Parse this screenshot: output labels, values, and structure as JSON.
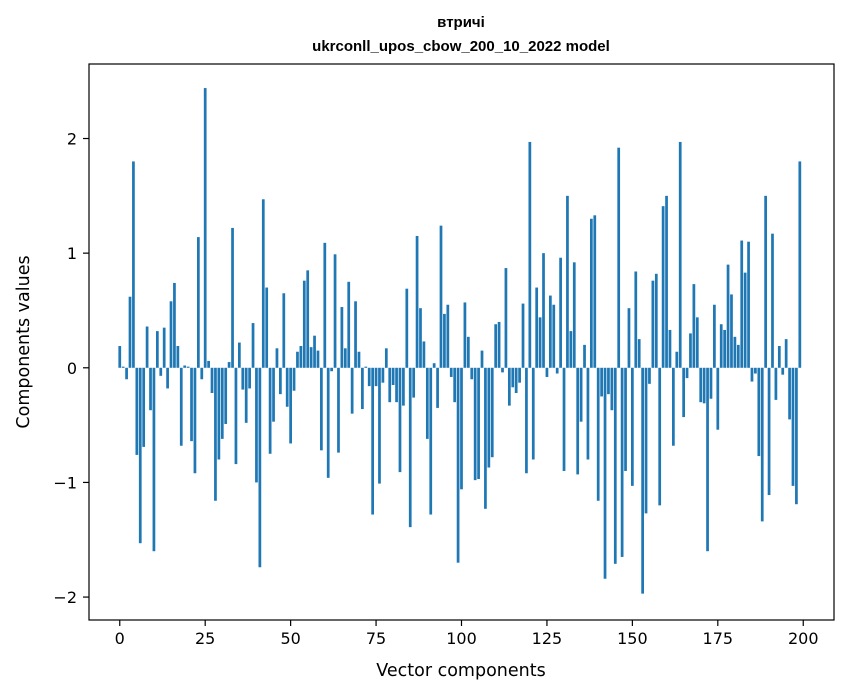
{
  "chart_data": {
    "type": "bar",
    "title": "втричі",
    "subtitle": "ukrconll_upos_cbow_200_10_2022 model",
    "xlabel": "Vector components",
    "ylabel": "Components values",
    "xlim": [
      -9,
      209
    ],
    "ylim": [
      -2.2,
      2.65
    ],
    "xticks": [
      0,
      25,
      50,
      75,
      100,
      125,
      150,
      175,
      200
    ],
    "xtick_labels": [
      "0",
      "25",
      "50",
      "75",
      "100",
      "125",
      "150",
      "175",
      "200"
    ],
    "yticks": [
      -2,
      -1,
      0,
      1,
      2
    ],
    "ytick_labels": [
      "−2",
      "−1",
      "0",
      "1",
      "2"
    ],
    "grid": false,
    "legend": "none",
    "bar_color": "#1f77b4",
    "values": [
      0.19,
      0.01,
      -0.1,
      0.62,
      1.8,
      -0.76,
      -1.53,
      -0.69,
      0.36,
      -0.37,
      -1.6,
      0.32,
      -0.07,
      0.35,
      -0.18,
      0.58,
      0.74,
      0.19,
      -0.68,
      0.02,
      0.01,
      -0.64,
      -0.92,
      1.14,
      -0.1,
      2.44,
      0.06,
      -0.22,
      -1.16,
      -0.8,
      -0.62,
      -0.49,
      0.05,
      1.22,
      -0.84,
      0.22,
      -0.19,
      -0.48,
      -0.18,
      0.39,
      -1.0,
      -1.74,
      1.47,
      0.7,
      -0.75,
      -0.47,
      0.17,
      -0.23,
      0.65,
      -0.34,
      -0.66,
      -0.2,
      0.14,
      0.19,
      0.76,
      0.85,
      0.18,
      0.28,
      0.15,
      -0.72,
      1.09,
      -0.96,
      -0.03,
      0.99,
      -0.74,
      0.53,
      0.17,
      0.75,
      -0.4,
      0.58,
      0.14,
      -0.36,
      0.01,
      -0.16,
      -1.28,
      -0.16,
      -1.01,
      -0.13,
      0.17,
      -0.3,
      -0.15,
      -0.3,
      -0.91,
      -0.33,
      0.69,
      -1.39,
      -0.26,
      1.15,
      0.52,
      0.23,
      -0.62,
      -1.28,
      0.04,
      -0.35,
      1.24,
      0.47,
      0.55,
      -0.08,
      -0.3,
      -1.7,
      -1.06,
      0.57,
      0.27,
      -0.1,
      -0.98,
      -0.97,
      0.15,
      -1.23,
      -0.87,
      -0.78,
      0.38,
      0.4,
      -0.04,
      0.87,
      -0.33,
      -0.17,
      -0.22,
      -0.13,
      0.56,
      -0.92,
      1.97,
      -0.8,
      0.7,
      0.44,
      1.0,
      -0.08,
      0.63,
      0.55,
      -0.05,
      0.96,
      -0.9,
      1.5,
      0.32,
      0.92,
      -0.93,
      -0.47,
      0.2,
      -0.8,
      1.3,
      1.33,
      -1.16,
      -0.25,
      -1.84,
      -0.23,
      -0.37,
      -1.71,
      1.92,
      -1.65,
      -0.9,
      0.52,
      -1.03,
      0.84,
      0.25,
      -1.97,
      -1.27,
      -0.14,
      0.76,
      0.82,
      -1.2,
      1.41,
      1.5,
      0.33,
      -0.68,
      0.14,
      1.97,
      -0.43,
      -0.09,
      0.3,
      0.73,
      0.44,
      -0.3,
      -0.31,
      -1.6,
      -0.27,
      0.55,
      -0.54,
      0.38,
      0.33,
      0.9,
      0.64,
      0.27,
      0.2,
      1.11,
      0.83,
      1.1,
      -0.12,
      -0.05,
      -0.77,
      -1.34,
      1.5,
      -1.11,
      1.17,
      -0.28,
      0.19,
      -0.06,
      0.25,
      -0.45,
      -1.03,
      -1.19,
      1.8
    ]
  }
}
